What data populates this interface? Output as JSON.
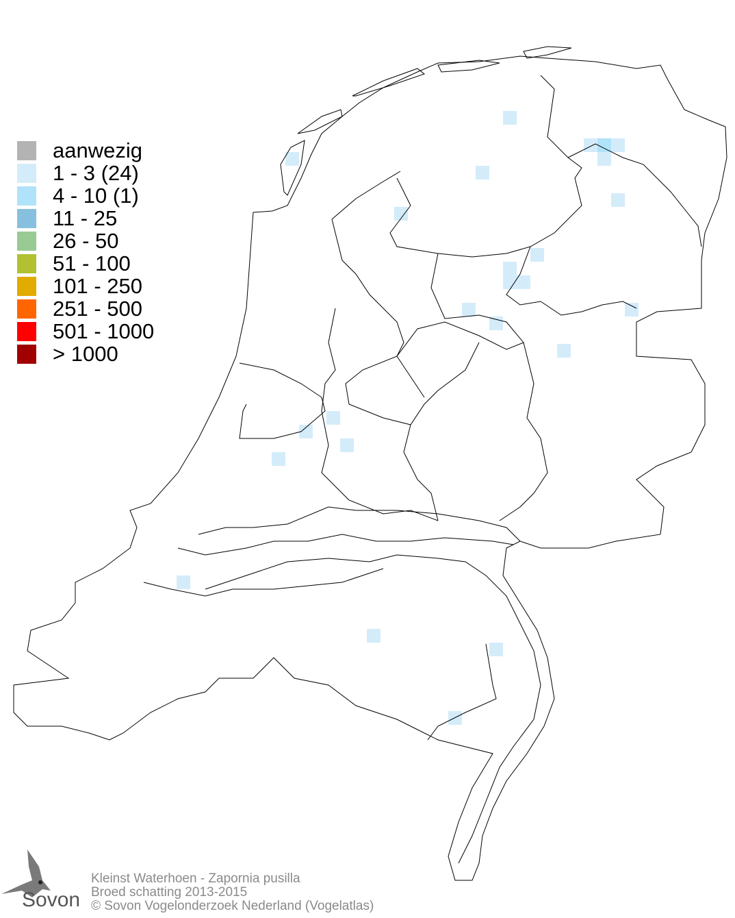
{
  "legend": {
    "items": [
      {
        "label": "aanwezig",
        "color": "#b3b3b3"
      },
      {
        "label": "1 - 3 (24)",
        "color": "#d4ecfa"
      },
      {
        "label": "4 - 10 (1)",
        "color": "#b0e2fa"
      },
      {
        "label": "11 - 25",
        "color": "#87c0de"
      },
      {
        "label": "26 - 50",
        "color": "#98cb93"
      },
      {
        "label": "51 - 100",
        "color": "#b1c131"
      },
      {
        "label": "101 - 250",
        "color": "#e2ab00"
      },
      {
        "label": "251 - 500",
        "color": "#ff6600"
      },
      {
        "label": "501 - 1000",
        "color": "#ff0000"
      },
      {
        "label": "> 1000",
        "color": "#a00000"
      }
    ]
  },
  "footer": {
    "line1": "Kleinst Waterhoen - Zapornia pusilla",
    "line2": "Broed schatting 2013-2015",
    "line3": "© Sovon Vogelonderzoek Nederland (Vogelatlas)"
  },
  "logo": {
    "text": "Sovon"
  }
}
